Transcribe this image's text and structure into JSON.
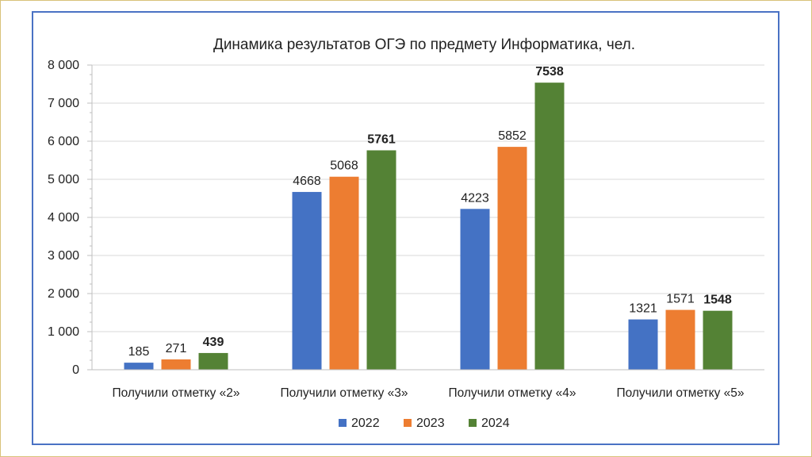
{
  "chart_data": {
    "type": "bar",
    "title": "Динамика  результатов ОГЭ по предмету Информатика, чел.",
    "categories": [
      "Получили отметку «2»",
      "Получили отметку «3»",
      "Получили отметку «4»",
      "Получили отметку «5»"
    ],
    "series": [
      {
        "name": "2022",
        "color": "#4472C4",
        "values": [
          185,
          4668,
          4223,
          1321
        ],
        "bold_labels": false
      },
      {
        "name": "2023",
        "color": "#ED7D31",
        "values": [
          271,
          5068,
          5852,
          1571
        ],
        "bold_labels": false
      },
      {
        "name": "2024",
        "color": "#548235",
        "values": [
          439,
          5761,
          7538,
          1548
        ],
        "bold_labels": true
      }
    ],
    "ylim": [
      0,
      8000
    ],
    "yticks": [
      0,
      1000,
      2000,
      3000,
      4000,
      5000,
      6000,
      7000,
      8000
    ],
    "ytick_labels": [
      "0",
      "1 000",
      "2 000",
      "3 000",
      "4 000",
      "5 000",
      "6 000",
      "7 000",
      "8 000"
    ],
    "grid": true,
    "legend_position": "bottom"
  }
}
